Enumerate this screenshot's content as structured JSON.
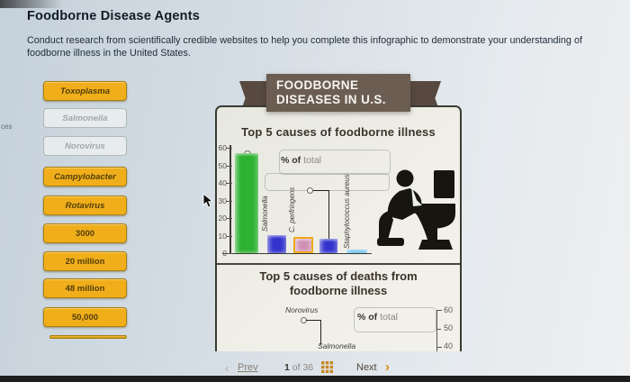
{
  "page": {
    "title": "Foodborne Disease Agents",
    "instructions": "Conduct research from scientifically credible websites to help you complete this infographic to demonstrate your understanding of foodborne illness in the United States.",
    "left_edge_fragment": "ces"
  },
  "word_bank": {
    "items": [
      {
        "label": "Toxoplasma",
        "state": "available",
        "italic": true
      },
      {
        "label": "Salmonella",
        "state": "used",
        "italic": true
      },
      {
        "label": "Norovirus",
        "state": "used",
        "italic": true
      },
      {
        "label": "Campylobacter",
        "state": "available",
        "italic": true
      },
      {
        "label": "Rotavirus",
        "state": "available",
        "italic": true
      },
      {
        "label": "3000",
        "state": "available",
        "italic": false
      },
      {
        "label": "20 million",
        "state": "available",
        "italic": false
      },
      {
        "label": "48 million",
        "state": "available",
        "italic": false
      },
      {
        "label": "50,000",
        "state": "available",
        "italic": false
      }
    ],
    "tile_color": "#f0ae1b",
    "tile_border_color": "#a97f0c"
  },
  "infographic": {
    "banner_line1": "FOODBORNE",
    "banner_line2": "DISEASES IN U.S.",
    "banner_color": "#6b5d52",
    "icons": {
      "vomit_icon": "person-vomiting-into-toilet-icon"
    }
  },
  "chart_data": [
    {
      "type": "bar",
      "title": "Top 5 causes of foodborne illness",
      "ylabel": "% of total",
      "ylabel_bold": "% of",
      "ylabel_rest": "total",
      "ylim": [
        0,
        60
      ],
      "yticks": [
        0,
        10,
        20,
        30,
        40,
        50,
        60
      ],
      "grid": false,
      "legend_position": "none",
      "bars": [
        {
          "label": "",
          "value": 57,
          "color": "#2eb231",
          "callout": "empty label anchor at bar top"
        },
        {
          "label": "Salmonella",
          "value": 10,
          "color": "#3232cc"
        },
        {
          "label": "C. perfringens",
          "value": 9,
          "color": "#cf8fb5",
          "border_color": "#f0a81c"
        },
        {
          "label": "",
          "value": 8,
          "color": "#3232cc",
          "callout": "empty label anchor at 37%"
        },
        {
          "label": "Staphylococcus aureus",
          "value": 2,
          "color": "#49b5ea"
        }
      ]
    },
    {
      "type": "bar",
      "title": "Top 5 causes of deaths from foodborne illness",
      "title_line1": "Top 5 causes of deaths from",
      "title_line2": "foodborne illness",
      "ylabel": "% of total",
      "ylabel_bold": "% of",
      "ylabel_rest": "total",
      "yticks_visible": [
        60,
        50,
        40
      ],
      "visible_bar_labels": [
        "Norovirus",
        "Salmonella"
      ],
      "note": "chart clipped by viewport bottom; only titles, two bar labels and top of right-side axis visible"
    }
  ],
  "pager": {
    "prev_label": "Prev",
    "current_page": "1",
    "of_label": "of",
    "total_pages": "36",
    "next_label": "Next",
    "grid_icon_color": "#c9871d"
  }
}
